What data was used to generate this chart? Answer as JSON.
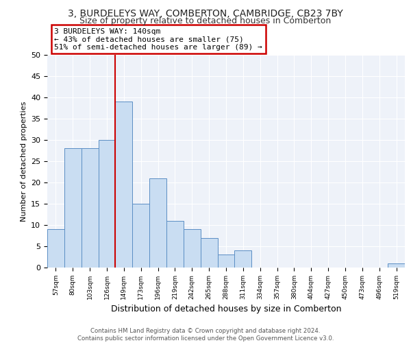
{
  "title1": "3, BURDELEYS WAY, COMBERTON, CAMBRIDGE, CB23 7BY",
  "title2": "Size of property relative to detached houses in Comberton",
  "xlabel": "Distribution of detached houses by size in Comberton",
  "ylabel": "Number of detached properties",
  "bar_labels": [
    "57sqm",
    "80sqm",
    "103sqm",
    "126sqm",
    "149sqm",
    "173sqm",
    "196sqm",
    "219sqm",
    "242sqm",
    "265sqm",
    "288sqm",
    "311sqm",
    "334sqm",
    "357sqm",
    "380sqm",
    "404sqm",
    "427sqm",
    "450sqm",
    "473sqm",
    "496sqm",
    "519sqm"
  ],
  "bar_values": [
    9,
    28,
    28,
    30,
    39,
    15,
    21,
    11,
    9,
    7,
    3,
    4,
    0,
    0,
    0,
    0,
    0,
    0,
    0,
    0,
    1
  ],
  "bar_color": "#c9ddf2",
  "bar_edge_color": "#5b8ec4",
  "annotation_text": "3 BURDELEYS WAY: 140sqm\n← 43% of detached houses are smaller (75)\n51% of semi-detached houses are larger (89) →",
  "vline_x": 3.5,
  "vline_color": "#cc0000",
  "annotation_box_color": "#cc0000",
  "ylim": [
    0,
    50
  ],
  "yticks": [
    0,
    5,
    10,
    15,
    20,
    25,
    30,
    35,
    40,
    45,
    50
  ],
  "footnote": "Contains HM Land Registry data © Crown copyright and database right 2024.\nContains public sector information licensed under the Open Government Licence v3.0.",
  "background_color": "#eef2f9",
  "grid_color": "#ffffff",
  "title1_fontsize": 10,
  "title2_fontsize": 9
}
